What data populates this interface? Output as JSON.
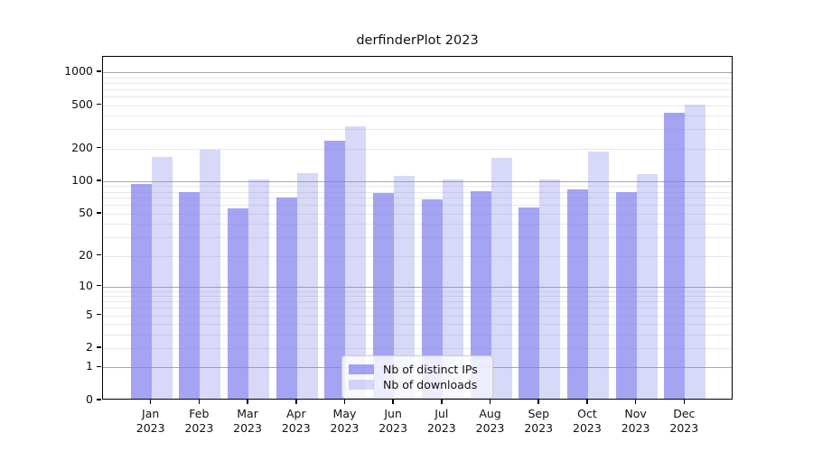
{
  "chart_data": {
    "type": "bar",
    "title": "derfinderPlot 2023",
    "categories": [
      "Jan",
      "Feb",
      "Mar",
      "Apr",
      "May",
      "Jun",
      "Jul",
      "Aug",
      "Sep",
      "Oct",
      "Nov",
      "Dec"
    ],
    "x_year": "2023",
    "series": [
      {
        "name": "Nb of distinct IPs",
        "fill": "rgba(125,125,236,0.70)",
        "values": [
          90,
          77,
          54,
          68,
          226,
          75,
          66,
          78,
          55,
          81,
          76,
          410
        ]
      },
      {
        "name": "Nb of downloads",
        "fill": "rgba(125,125,236,0.30)",
        "values": [
          162,
          189,
          99,
          114,
          310,
          108,
          100,
          159,
          100,
          180,
          113,
          490
        ]
      }
    ],
    "yscale": "log10(value+1)",
    "yticks": [
      0,
      1,
      2,
      5,
      10,
      20,
      50,
      100,
      200,
      500,
      1000
    ],
    "ylim": [
      0,
      1380
    ],
    "grid": {
      "major_values": [
        1,
        10,
        100,
        1000
      ],
      "major_color": "#a8a8a8",
      "minor_color": "#e8e8e8"
    },
    "legend_position": "bottom-center"
  }
}
